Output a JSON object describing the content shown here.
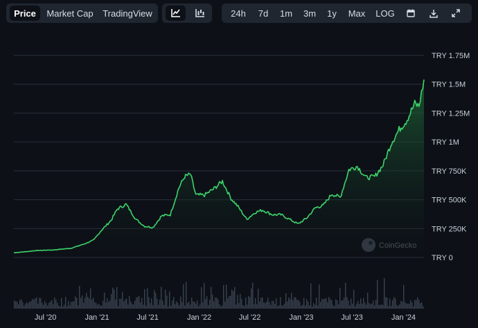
{
  "toolbar": {
    "view_tabs": [
      {
        "label": "Price",
        "active": true
      },
      {
        "label": "Market Cap",
        "active": false
      },
      {
        "label": "TradingView",
        "active": false
      }
    ],
    "chart_type_icons": [
      "line-chart-icon",
      "candlestick-chart-icon"
    ],
    "ranges": [
      "24h",
      "7d",
      "1m",
      "3m",
      "1y",
      "Max",
      "LOG"
    ],
    "action_icons": [
      "calendar-icon",
      "download-icon",
      "fullscreen-icon"
    ]
  },
  "watermark": "CoinGecko",
  "colors": {
    "line": "#3ed46b",
    "area_top": "#1f6b3a",
    "volume": "#3a4250",
    "grid": "#2a313b",
    "background": "#0d1117"
  },
  "chart_data": {
    "type": "line",
    "series_name": "",
    "y_ticks": [
      "TRY 0",
      "TRY 250K",
      "TRY 500K",
      "TRY 750K",
      "TRY 1M",
      "TRY 1.25M",
      "TRY 1.5M",
      "TRY 1.75M"
    ],
    "ylim": [
      0,
      1750000
    ],
    "x_ticks": [
      "Jul '20",
      "Jan '21",
      "Jul '21",
      "Jan '22",
      "Jul '22",
      "Jan '23",
      "Jul '23",
      "Jan '24"
    ],
    "x_start": "2020-03-10",
    "x_end": "2024-03-14",
    "x_tick_dates": [
      "2020-07-01",
      "2021-01-01",
      "2021-07-01",
      "2022-01-01",
      "2022-07-01",
      "2023-01-01",
      "2023-07-01",
      "2024-01-01"
    ],
    "points": [
      [
        "2020-03-10",
        40000
      ],
      [
        "2020-04-15",
        48000
      ],
      [
        "2020-06-01",
        60000
      ],
      [
        "2020-08-01",
        65000
      ],
      [
        "2020-10-01",
        80000
      ],
      [
        "2020-11-15",
        115000
      ],
      [
        "2020-12-20",
        150000
      ],
      [
        "2021-01-15",
        230000
      ],
      [
        "2021-02-20",
        320000
      ],
      [
        "2021-03-15",
        420000
      ],
      [
        "2021-04-15",
        460000
      ],
      [
        "2021-05-20",
        330000
      ],
      [
        "2021-06-20",
        270000
      ],
      [
        "2021-07-20",
        260000
      ],
      [
        "2021-08-20",
        360000
      ],
      [
        "2021-09-20",
        370000
      ],
      [
        "2021-10-20",
        600000
      ],
      [
        "2021-11-10",
        700000
      ],
      [
        "2021-12-01",
        720000
      ],
      [
        "2021-12-20",
        540000
      ],
      [
        "2022-01-20",
        540000
      ],
      [
        "2022-02-20",
        590000
      ],
      [
        "2022-03-25",
        660000
      ],
      [
        "2022-04-25",
        510000
      ],
      [
        "2022-05-20",
        440000
      ],
      [
        "2022-06-20",
        330000
      ],
      [
        "2022-07-20",
        390000
      ],
      [
        "2022-08-15",
        410000
      ],
      [
        "2022-09-20",
        370000
      ],
      [
        "2022-10-20",
        370000
      ],
      [
        "2022-11-20",
        330000
      ],
      [
        "2022-12-20",
        290000
      ],
      [
        "2023-01-20",
        340000
      ],
      [
        "2023-02-20",
        430000
      ],
      [
        "2023-03-20",
        450000
      ],
      [
        "2023-04-20",
        550000
      ],
      [
        "2023-05-20",
        520000
      ],
      [
        "2023-06-20",
        760000
      ],
      [
        "2023-07-20",
        790000
      ],
      [
        "2023-08-20",
        690000
      ],
      [
        "2023-09-20",
        700000
      ],
      [
        "2023-10-20",
        800000
      ],
      [
        "2023-11-20",
        1000000
      ],
      [
        "2023-12-20",
        1120000
      ],
      [
        "2024-01-10",
        1180000
      ],
      [
        "2024-01-25",
        1250000
      ],
      [
        "2024-02-10",
        1330000
      ],
      [
        "2024-02-25",
        1310000
      ],
      [
        "2024-03-05",
        1420000
      ],
      [
        "2024-03-14",
        1540000
      ]
    ]
  }
}
